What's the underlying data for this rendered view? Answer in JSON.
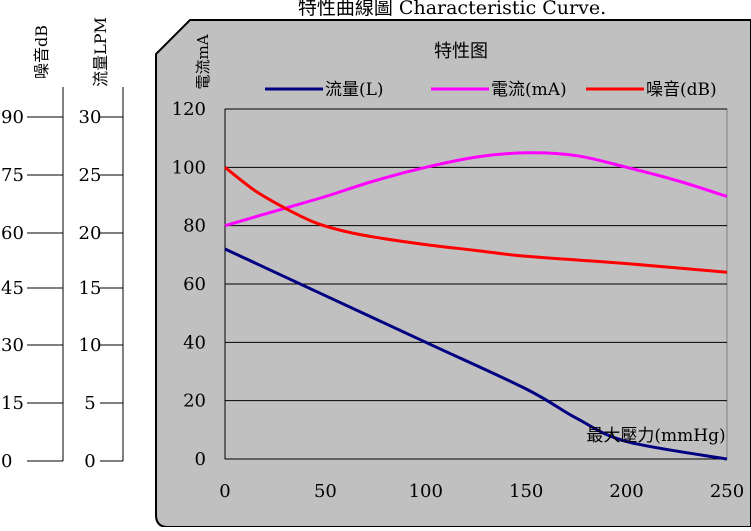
{
  "header": {
    "caption": "特性曲線圖 Characteristic Curve."
  },
  "colors": {
    "plot_bg": "#c0c0c0",
    "flow": "#000080",
    "current": "#ff00ff",
    "noise": "#ff0000"
  },
  "outer_axes": {
    "noise": {
      "label": "噪音dB",
      "ticks": [
        "90",
        "75",
        "60",
        "45",
        "30",
        "15",
        "0"
      ]
    },
    "flow": {
      "label": "流量LPM",
      "ticks": [
        "30",
        "25",
        "20",
        "15",
        "10",
        "5",
        "0"
      ]
    }
  },
  "chart_data": {
    "type": "line",
    "title": "特性图",
    "ylabel": "電流mA",
    "xlabel": "最大壓力(mmHg)",
    "xlim": [
      0,
      250
    ],
    "ylim": [
      0,
      120
    ],
    "x_ticks": [
      "0",
      "50",
      "100",
      "150",
      "200",
      "250"
    ],
    "y_ticks": [
      "0",
      "20",
      "40",
      "60",
      "80",
      "100",
      "120"
    ],
    "grid": true,
    "legend_position": "top",
    "series": [
      {
        "name": "流量(L)",
        "color": "#000080",
        "x": [
          0,
          50,
          100,
          150,
          175,
          200,
          250
        ],
        "y": [
          72,
          56,
          40,
          24,
          14,
          6,
          0
        ]
      },
      {
        "name": "電流(mA)",
        "color": "#ff00ff",
        "x": [
          0,
          25,
          50,
          75,
          100,
          125,
          150,
          175,
          200,
          225,
          250
        ],
        "y": [
          80,
          85,
          90,
          95.5,
          100,
          103.5,
          105,
          104,
          100,
          95.5,
          90
        ]
      },
      {
        "name": "噪音(dB)",
        "color": "#ff0000",
        "x": [
          0,
          15,
          30,
          45,
          60,
          75,
          100,
          125,
          150,
          200,
          250
        ],
        "y": [
          100,
          92,
          86,
          81,
          78,
          76,
          73.5,
          71.5,
          69.5,
          67,
          64
        ]
      }
    ]
  }
}
